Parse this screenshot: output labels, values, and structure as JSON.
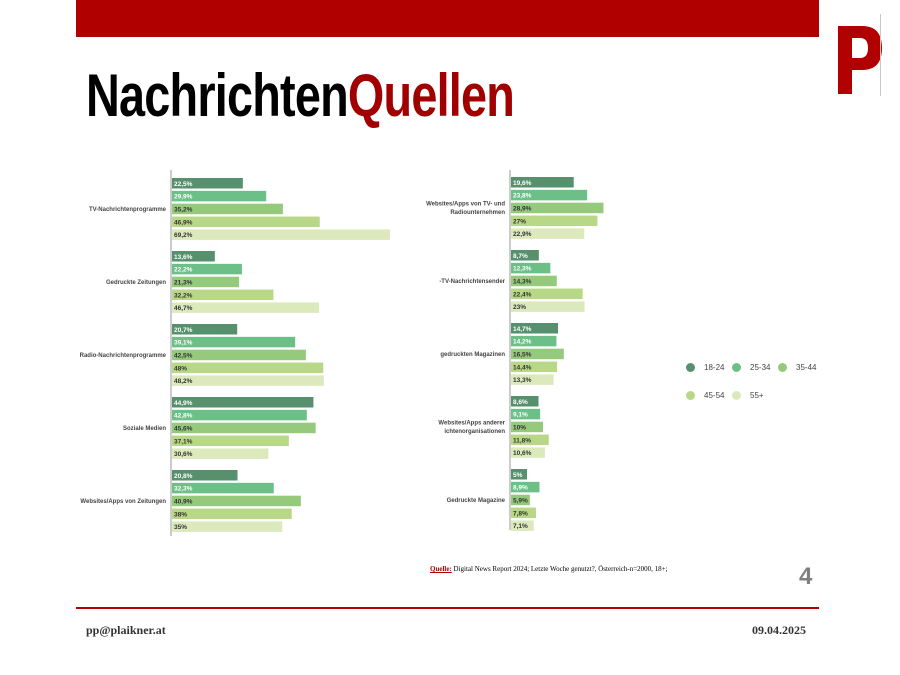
{
  "header": {
    "title_black": "Nachrichten",
    "title_red": "Quellen"
  },
  "brand": {
    "red": "#b00000",
    "dark_red": "#a00000"
  },
  "legend": [
    {
      "label": "18-24",
      "color": "#57906d"
    },
    {
      "label": "25-34",
      "color": "#6cbf87"
    },
    {
      "label": "35-44",
      "color": "#95c97c"
    },
    {
      "label": "45-54",
      "color": "#b9d887"
    },
    {
      "label": "55+",
      "color": "#dce9bd"
    }
  ],
  "chart_data": [
    {
      "type": "bar",
      "orientation": "horizontal",
      "series_names": [
        "18-24",
        "25-34",
        "35-44",
        "45-54",
        "55+"
      ],
      "categories": [
        {
          "label": [
            "TV-Nachrichtenprogramme"
          ],
          "values": [
            22.5,
            29.9,
            35.2,
            46.9,
            69.2
          ],
          "labels": [
            "22,5%",
            "29,9%",
            "35,2%",
            "46,9%",
            "69,2%"
          ]
        },
        {
          "label": [
            "Gedruckte Zeitungen"
          ],
          "values": [
            13.6,
            22.2,
            21.3,
            32.2,
            46.7
          ],
          "labels": [
            "13,6%",
            "22,2%",
            "21,3%",
            "32,2%",
            "46,7%"
          ]
        },
        {
          "label": [
            "Radio-Nachrichtenprogramme"
          ],
          "values": [
            20.7,
            39.1,
            42.5,
            48,
            48.2
          ],
          "labels": [
            "20,7%",
            "39,1%",
            "42,5%",
            "48%",
            "48,2%"
          ]
        },
        {
          "label": [
            "Soziale Medien"
          ],
          "values": [
            44.9,
            42.8,
            45.6,
            37.1,
            30.6
          ],
          "labels": [
            "44,9%",
            "42,8%",
            "45,6%",
            "37,1%",
            "30,6%"
          ]
        },
        {
          "label": [
            "Websites/Apps von Zeitungen"
          ],
          "values": [
            20.8,
            32.3,
            40.9,
            38,
            35
          ],
          "labels": [
            "20,8%",
            "32,3%",
            "40,9%",
            "38%",
            "35%"
          ]
        }
      ]
    },
    {
      "type": "bar",
      "orientation": "horizontal",
      "series_names": [
        "18-24",
        "25-34",
        "35-44",
        "45-54",
        "55+"
      ],
      "categories": [
        {
          "label": [
            "Websites/Apps von TV- und",
            "Radiounternehmen"
          ],
          "values": [
            19.6,
            23.8,
            28.9,
            27,
            22.9
          ],
          "labels": [
            "19,6%",
            "23,8%",
            "28,9%",
            "27%",
            "22,9%"
          ]
        },
        {
          "label": [
            "-TV-Nachrichtensender"
          ],
          "values": [
            8.7,
            12.3,
            14.3,
            22.4,
            23
          ],
          "labels": [
            "8,7%",
            "12,3%",
            "14,3%",
            "22,4%",
            "23%"
          ]
        },
        {
          "label": [
            "gedruckten Magazinen"
          ],
          "values": [
            14.7,
            14.2,
            16.5,
            14.4,
            13.3
          ],
          "labels": [
            "14,7%",
            "14,2%",
            "16,5%",
            "14,4%",
            "13,3%"
          ]
        },
        {
          "label": [
            "Websites/Apps anderer",
            "ichtenorganisationen"
          ],
          "values": [
            8.6,
            9.1,
            10,
            11.8,
            10.6
          ],
          "labels": [
            "8,6%",
            "9,1%",
            "10%",
            "11,8%",
            "10,6%"
          ]
        },
        {
          "label": [
            "Gedruckte Magazine"
          ],
          "values": [
            5,
            8.9,
            5.9,
            7.8,
            7.1
          ],
          "labels": [
            "5%",
            "8,9%",
            "5,9%",
            "7,8%",
            "7,1%"
          ]
        }
      ]
    }
  ],
  "source": {
    "label": "Quelle:",
    "text": " Digital News Report 2024; Letzte Woche genutzt?, Österreich-n=2000, 18+;"
  },
  "page_number": "4",
  "footer": {
    "email": "pp@plaikner.at",
    "date": "09.04.2025"
  }
}
